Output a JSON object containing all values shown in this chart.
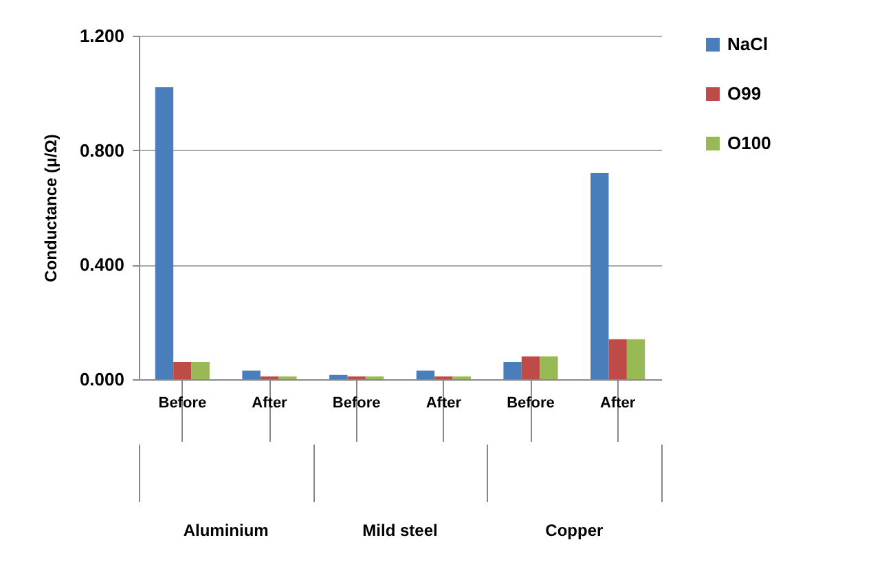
{
  "chart_data": {
    "type": "bar",
    "ylabel": "Conductance (μ/Ω)",
    "categories": [
      "Before",
      "After",
      "Before",
      "After",
      "Before",
      "After"
    ],
    "series": [
      {
        "name": "NaCl",
        "color": "#4a7ebb",
        "values": [
          1.02,
          0.03,
          0.015,
          0.03,
          0.06,
          0.72
        ]
      },
      {
        "name": "O99",
        "color": "#be4b48",
        "values": [
          0.06,
          0.01,
          0.01,
          0.01,
          0.08,
          0.14
        ]
      },
      {
        "name": "O100",
        "color": "#98b954",
        "values": [
          0.06,
          0.01,
          0.01,
          0.01,
          0.08,
          0.14
        ]
      }
    ],
    "annotations": [
      "Aluminium",
      "Mild steel",
      "Copper"
    ],
    "ylim": [
      0,
      1.2
    ],
    "yticks": [
      {
        "value": 0,
        "label": "0.000"
      },
      {
        "value": 0.4,
        "label": "0.400"
      },
      {
        "value": 0.8,
        "label": "0.800"
      },
      {
        "value": 1.2,
        "label": "1.200"
      }
    ],
    "grid": "y",
    "legend": "right"
  }
}
